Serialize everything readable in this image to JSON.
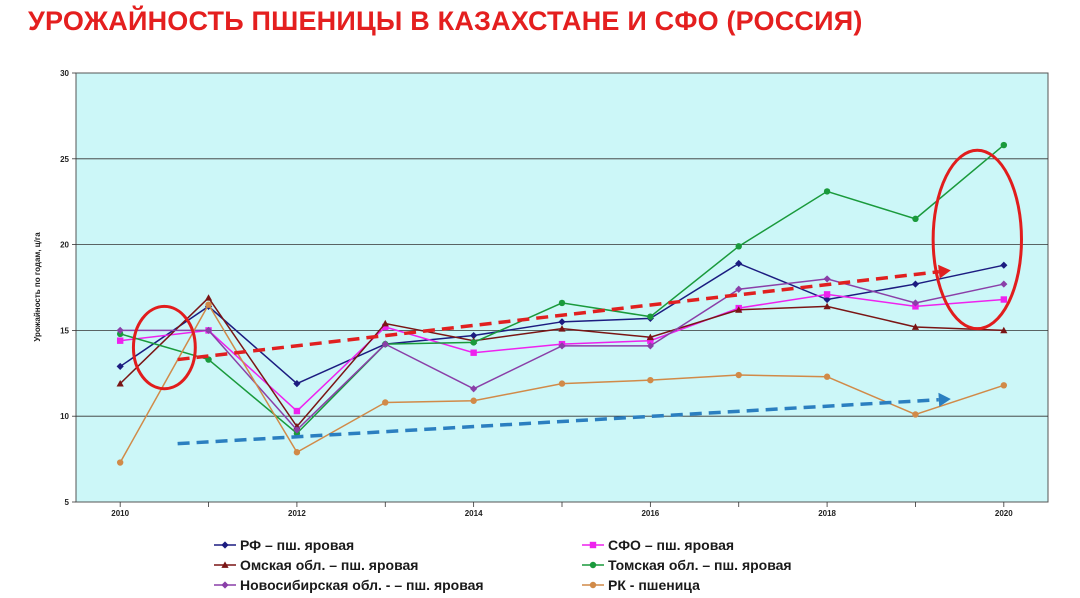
{
  "page": {
    "title": "УРОЖАЙНОСТЬ ПШЕНИЦЫ В КАЗАХСТАНЕ И СФО (РОССИЯ)"
  },
  "chart_data": {
    "type": "line",
    "title": "УРОЖАЙНОСТЬ ПШЕНИЦЫ В КАЗАХСТАНЕ И СФО (РОССИЯ)",
    "xlabel": "",
    "ylabel": "Урожайность по годам, ц/га",
    "x": [
      2010,
      2011,
      2012,
      2013,
      2014,
      2015,
      2016,
      2017,
      2018,
      2019,
      2020
    ],
    "x_ticks": [
      "2010",
      "2012",
      "2014",
      "2016",
      "2018",
      "2020"
    ],
    "ylim": [
      5,
      30
    ],
    "y_ticks": [
      "5",
      "10",
      "15",
      "20",
      "25",
      "30"
    ],
    "grid": "horizontal",
    "plot_background": "#ccf7f8",
    "legend_position": "bottom",
    "series": [
      {
        "name": "РФ – пш. яровая",
        "color": "#1c1c80",
        "marker": "diamond",
        "values": [
          12.9,
          16.4,
          11.9,
          14.2,
          14.7,
          15.5,
          15.7,
          18.9,
          16.8,
          17.7,
          18.8
        ]
      },
      {
        "name": "СФО – пш. яровая",
        "color": "#ee22ee",
        "marker": "square",
        "values": [
          14.4,
          15.0,
          10.3,
          15.2,
          13.7,
          14.2,
          14.4,
          16.3,
          17.1,
          16.4,
          16.8
        ]
      },
      {
        "name": "Омская обл. – пш. яровая",
        "color": "#7a1515",
        "marker": "triangle",
        "values": [
          11.9,
          16.9,
          9.4,
          15.4,
          14.4,
          15.1,
          14.6,
          16.2,
          16.4,
          15.2,
          15.0
        ]
      },
      {
        "name": "Томская обл. – пш. яровая",
        "color": "#1a9a3c",
        "marker": "circle",
        "values": [
          14.8,
          13.3,
          9.0,
          14.2,
          14.3,
          16.6,
          15.8,
          19.9,
          23.1,
          21.5,
          25.8
        ]
      },
      {
        "name": "Новосибирская обл. - – пш. яровая",
        "color": "#8a3fa8",
        "marker": "diamond",
        "values": [
          15.0,
          15.0,
          9.2,
          14.2,
          11.6,
          14.1,
          14.1,
          17.4,
          18.0,
          16.6,
          17.7
        ]
      },
      {
        "name": "РК - пшеница",
        "color": "#d18a48",
        "marker": "circle",
        "values": [
          7.3,
          16.5,
          7.9,
          10.8,
          10.9,
          11.9,
          12.1,
          12.4,
          12.3,
          10.1,
          11.8
        ]
      }
    ],
    "annotations": [
      {
        "kind": "trend-arrow",
        "color": "#e02020",
        "from": [
          2010.65,
          13.3
        ],
        "to": [
          2019.4,
          18.5
        ]
      },
      {
        "kind": "trend-arrow",
        "color": "#2b7fc0",
        "from": [
          2010.65,
          8.4
        ],
        "to": [
          2019.4,
          11.0
        ]
      },
      {
        "kind": "ellipse",
        "color": "#e11d1d",
        "center": [
          2010.5,
          14.0
        ],
        "rx_years": 0.35,
        "ry_units": 2.4
      },
      {
        "kind": "ellipse",
        "color": "#e11d1d",
        "center": [
          2019.7,
          20.3
        ],
        "rx_years": 0.5,
        "ry_units": 5.2
      }
    ]
  }
}
